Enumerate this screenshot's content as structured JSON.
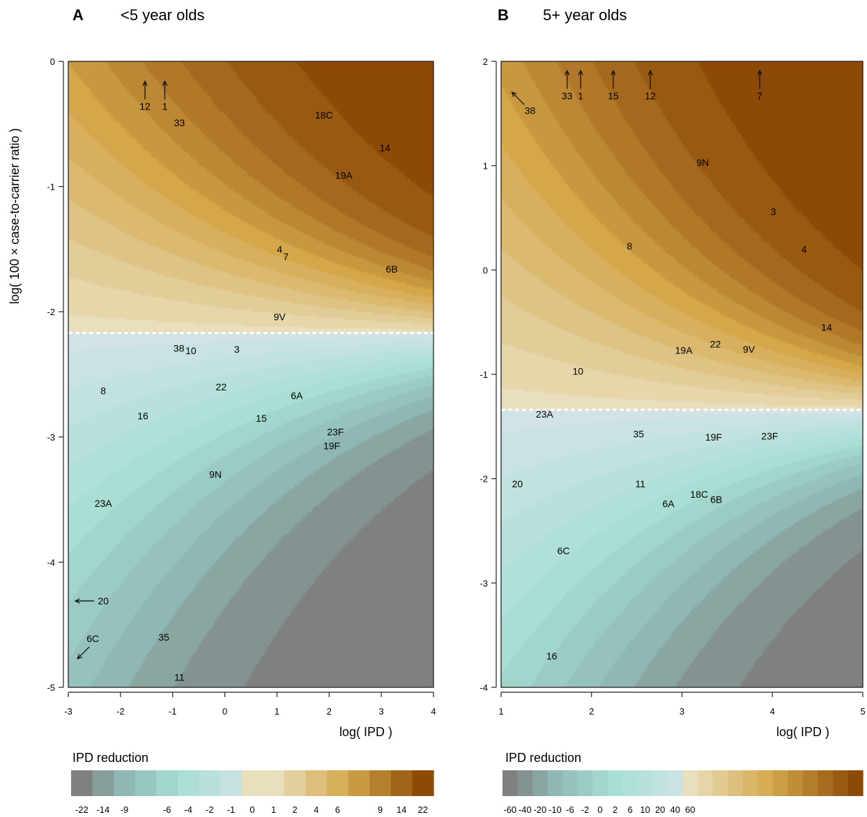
{
  "colors": {
    "negative_strong": "#7e8180",
    "negative_mid": "#8fb8b4",
    "negative_light": "#a9e0d6",
    "negative_pale": "#d2e3e6",
    "positive_pale": "#e9dfbd",
    "positive_mid": "#d4a74a",
    "positive_strong": "#8c4a06",
    "threshold_line": "#ffffff"
  },
  "chart_data": [
    {
      "type": "heatmap",
      "panel_letter": "A",
      "title": "<5 year olds",
      "xlabel": "log( IPD )",
      "ylabel": "log( 100 ×  case-to-carrier ratio )",
      "xlim": [
        -3,
        4
      ],
      "ylim": [
        -5,
        0
      ],
      "xticks": [
        -3,
        -2,
        -1,
        0,
        1,
        2,
        3,
        4
      ],
      "yticks": [
        0,
        -1,
        -2,
        -3,
        -4,
        -5
      ],
      "threshold_y": -2.17,
      "xscale": 3.8,
      "yscale": 1.3,
      "legend_title": "IPD reduction",
      "legend_ticks": [
        "-22",
        "-14",
        "-9",
        "-6",
        "-4",
        "-2",
        "-1",
        "0",
        "1",
        "2",
        "4",
        "6",
        "9",
        "14",
        "22"
      ],
      "legend_tick_pos": [
        0,
        1,
        2,
        4,
        5,
        6,
        7,
        8,
        9,
        10,
        11,
        12,
        14,
        15,
        16
      ],
      "legend_bins": 17,
      "points": [
        {
          "label": "12",
          "x": -1.53,
          "y": -0.36,
          "arrow": "up"
        },
        {
          "label": "1",
          "x": -1.15,
          "y": -0.36,
          "arrow": "up"
        },
        {
          "label": "33",
          "x": -0.87,
          "y": -0.49
        },
        {
          "label": "18C",
          "x": 1.9,
          "y": -0.43
        },
        {
          "label": "14",
          "x": 3.07,
          "y": -0.69
        },
        {
          "label": "19A",
          "x": 2.28,
          "y": -0.91
        },
        {
          "label": "4",
          "x": 1.05,
          "y": -1.5
        },
        {
          "label": "7",
          "x": 1.17,
          "y": -1.56
        },
        {
          "label": "6B",
          "x": 3.2,
          "y": -1.66
        },
        {
          "label": "9V",
          "x": 1.05,
          "y": -2.04
        },
        {
          "label": "38",
          "x": -0.88,
          "y": -2.29
        },
        {
          "label": "10",
          "x": -0.65,
          "y": -2.31
        },
        {
          "label": "3",
          "x": 0.23,
          "y": -2.3
        },
        {
          "label": "22",
          "x": -0.07,
          "y": -2.6
        },
        {
          "label": "6A",
          "x": 1.38,
          "y": -2.67
        },
        {
          "label": "8",
          "x": -2.33,
          "y": -2.63
        },
        {
          "label": "16",
          "x": -1.57,
          "y": -2.83
        },
        {
          "label": "15",
          "x": 0.7,
          "y": -2.85
        },
        {
          "label": "23F",
          "x": 2.12,
          "y": -2.96
        },
        {
          "label": "19F",
          "x": 2.05,
          "y": -3.07
        },
        {
          "label": "9N",
          "x": -0.18,
          "y": -3.3
        },
        {
          "label": "23A",
          "x": -2.33,
          "y": -3.53
        },
        {
          "label": "20",
          "x": -2.33,
          "y": -4.31,
          "arrow": "left"
        },
        {
          "label": "6C",
          "x": -2.53,
          "y": -4.61,
          "arrow": "down-left"
        },
        {
          "label": "35",
          "x": -1.17,
          "y": -4.6
        },
        {
          "label": "11",
          "x": -0.87,
          "y": -4.92
        }
      ]
    },
    {
      "type": "heatmap",
      "panel_letter": "B",
      "title": "5+ year olds",
      "xlabel": "log( IPD )",
      "ylabel": "",
      "xlim": [
        1,
        5
      ],
      "ylim": [
        -4,
        2
      ],
      "xticks": [
        1,
        2,
        3,
        4,
        5
      ],
      "yticks": [
        2,
        1,
        0,
        -1,
        -2,
        -3,
        -4
      ],
      "threshold_y": -1.34,
      "xscale": 2.0,
      "yscale": 1.6,
      "legend_title": "IPD reduction",
      "legend_ticks": [
        "-60",
        "-40",
        "-20",
        "-10",
        "-6",
        "-2",
        "0",
        "2",
        "6",
        "10",
        "20",
        "40",
        "60"
      ],
      "legend_tick_pos": [
        0,
        1,
        2,
        3,
        4,
        5,
        6,
        7,
        8,
        9,
        10,
        11,
        12
      ],
      "legend_bins": 24,
      "points": [
        {
          "label": "33",
          "x": 1.73,
          "y": 1.67,
          "arrow": "up"
        },
        {
          "label": "1",
          "x": 1.88,
          "y": 1.67,
          "arrow": "up"
        },
        {
          "label": "15",
          "x": 2.24,
          "y": 1.67,
          "arrow": "up"
        },
        {
          "label": "12",
          "x": 2.65,
          "y": 1.67,
          "arrow": "up"
        },
        {
          "label": "7",
          "x": 3.86,
          "y": 1.67,
          "arrow": "up"
        },
        {
          "label": "38",
          "x": 1.32,
          "y": 1.53,
          "arrow": "up-left"
        },
        {
          "label": "9N",
          "x": 3.23,
          "y": 1.03
        },
        {
          "label": "3",
          "x": 4.01,
          "y": 0.56
        },
        {
          "label": "8",
          "x": 2.42,
          "y": 0.23
        },
        {
          "label": "4",
          "x": 4.35,
          "y": 0.2
        },
        {
          "label": "14",
          "x": 4.6,
          "y": -0.55
        },
        {
          "label": "19A",
          "x": 3.02,
          "y": -0.77
        },
        {
          "label": "22",
          "x": 3.37,
          "y": -0.71
        },
        {
          "label": "9V",
          "x": 3.74,
          "y": -0.76
        },
        {
          "label": "10",
          "x": 1.85,
          "y": -0.97
        },
        {
          "label": "23A",
          "x": 1.48,
          "y": -1.38
        },
        {
          "label": "35",
          "x": 2.52,
          "y": -1.57
        },
        {
          "label": "19F",
          "x": 3.35,
          "y": -1.6
        },
        {
          "label": "23F",
          "x": 3.97,
          "y": -1.59
        },
        {
          "label": "20",
          "x": 1.18,
          "y": -2.05
        },
        {
          "label": "11",
          "x": 2.54,
          "y": -2.05
        },
        {
          "label": "18C",
          "x": 3.19,
          "y": -2.15
        },
        {
          "label": "6B",
          "x": 3.38,
          "y": -2.2
        },
        {
          "label": "6A",
          "x": 2.85,
          "y": -2.24
        },
        {
          "label": "6C",
          "x": 1.69,
          "y": -2.69
        },
        {
          "label": "16",
          "x": 1.56,
          "y": -3.7
        }
      ]
    }
  ]
}
